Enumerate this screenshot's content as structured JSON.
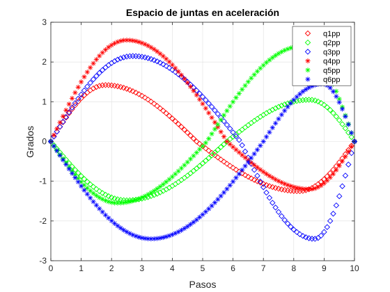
{
  "chart_data": {
    "type": "scatter",
    "title": "Espacio de juntas en aceleración",
    "xlabel": "Pasos",
    "ylabel": "Grados",
    "xlim": [
      0,
      10
    ],
    "ylim": [
      -3,
      3
    ],
    "xticks": [
      "0",
      "1",
      "2",
      "3",
      "4",
      "5",
      "6",
      "7",
      "8",
      "9",
      "10"
    ],
    "yticks": [
      "-3",
      "-2",
      "-1",
      "0",
      "1",
      "2",
      "3"
    ],
    "grid": true,
    "legend_position": "top-right",
    "x_range": [
      0,
      10
    ],
    "num_points": 100,
    "series": [
      {
        "name": "q1pp",
        "color": "#ff0000",
        "marker": "diamond",
        "amplitude": 1.42,
        "peak_x": 1.8,
        "end_level": -1.25
      },
      {
        "name": "q2pp",
        "color": "#00ff00",
        "marker": "diamond",
        "amplitude": -1.48,
        "peak_x": 2.5,
        "end_level": 1.05
      },
      {
        "name": "q3pp",
        "color": "#0000ff",
        "marker": "diamond",
        "amplitude": 2.15,
        "peak_x": 2.7,
        "end_level": -2.45
      },
      {
        "name": "q4pp",
        "color": "#ff0000",
        "marker": "asterisk",
        "amplitude": 2.55,
        "peak_x": 2.5,
        "end_level": -1.2
      },
      {
        "name": "q5pp",
        "color": "#00ff00",
        "marker": "asterisk",
        "amplitude": -1.55,
        "peak_x": 2.2,
        "end_level": 2.4
      },
      {
        "name": "q6pp",
        "color": "#0000ff",
        "marker": "asterisk",
        "amplitude": -2.45,
        "peak_x": 3.3,
        "end_level": 1.45
      }
    ]
  }
}
